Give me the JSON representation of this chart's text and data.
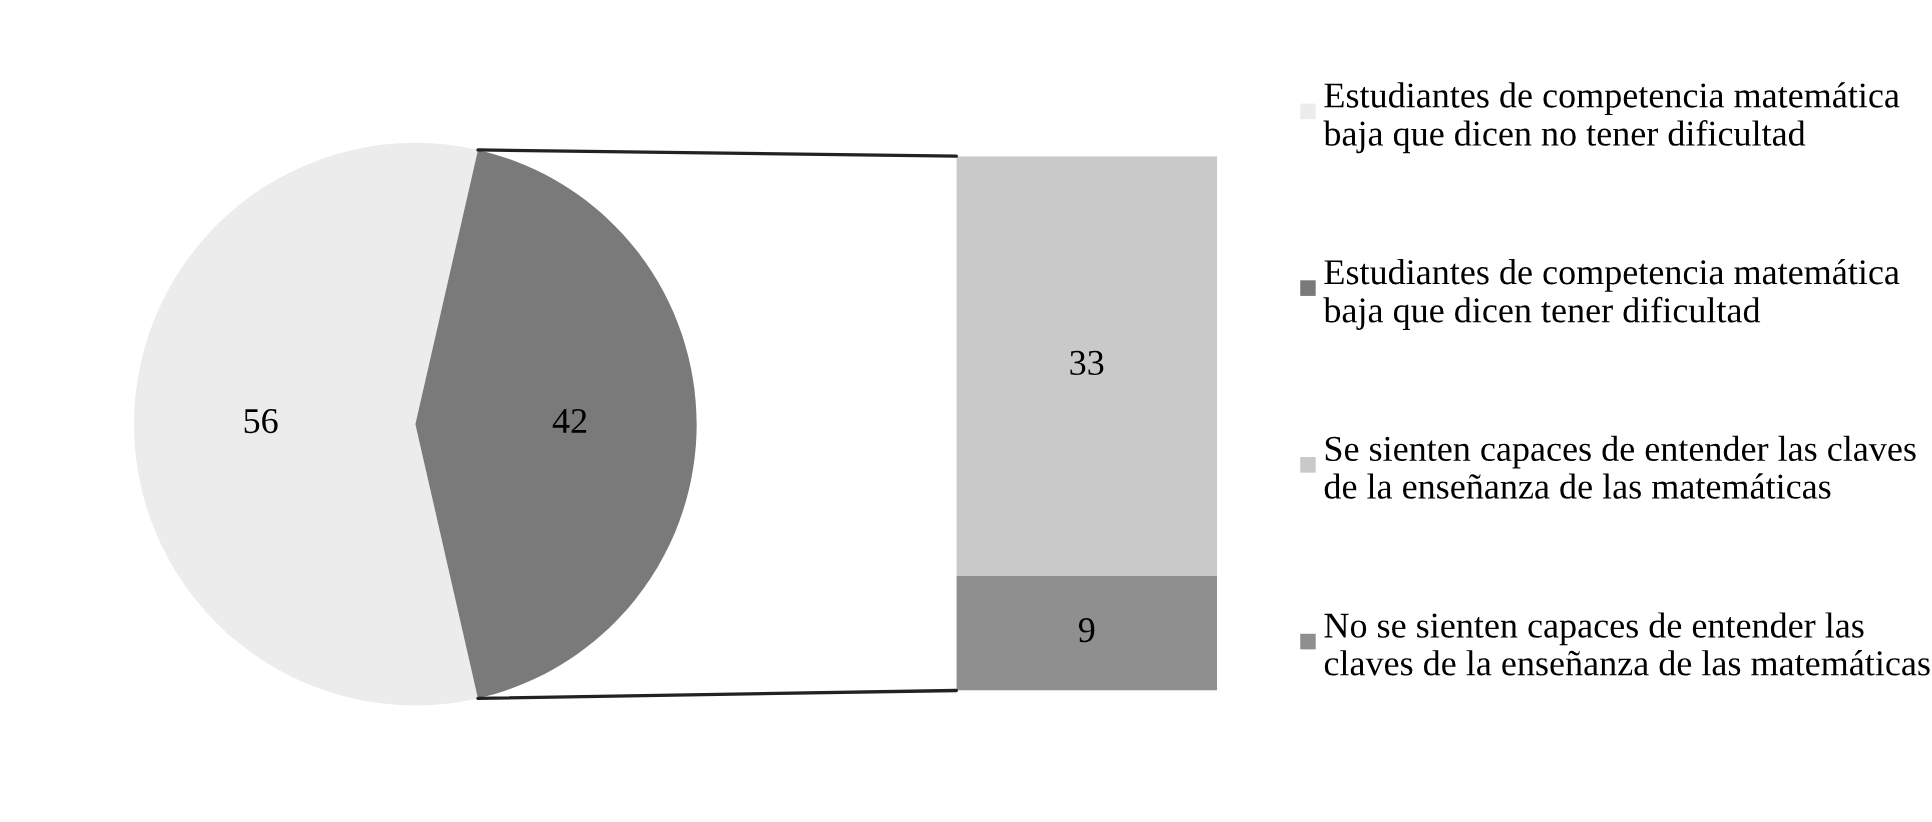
{
  "chart_data": [
    {
      "type": "pie",
      "categories": [
        "Estudiantes de competencia matemática baja que dicen no tener dificultad",
        "Estudiantes de competencia matemática baja que dicen tener dificultad"
      ],
      "values": [
        56,
        42
      ],
      "colors": [
        "#ececec",
        "#7a7a7a"
      ],
      "data_labels": true,
      "legend": "right"
    },
    {
      "type": "bar",
      "stacked": true,
      "categories": [
        null
      ],
      "tick_labels": false,
      "data_labels": true,
      "legend": "right",
      "series": [
        {
          "name": "No se sienten capaces de entender las claves de la enseñanza de las matemáticas",
          "color": "#8f8f8f",
          "values": [
            9
          ]
        },
        {
          "name": "Se sienten capaces de entender las claves de la enseñanza de las matemáticas",
          "color": "#c9c9c9",
          "values": [
            33
          ]
        }
      ]
    }
  ]
}
